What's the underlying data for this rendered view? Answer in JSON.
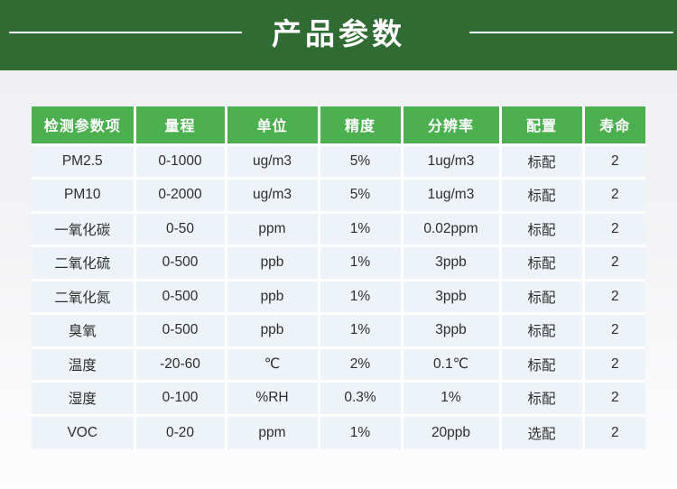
{
  "banner": {
    "title": "产品参数",
    "bg_color": "#306b33",
    "line_color": "#fcfdfb"
  },
  "table": {
    "accent_color": "#4cb050",
    "cell_bg_color": "#eef3f9",
    "headers": [
      "检测参数项",
      "量程",
      "单位",
      "精度",
      "分辨率",
      "配置",
      "寿命"
    ],
    "rows": [
      [
        "PM2.5",
        "0-1000",
        "ug/m3",
        "5%",
        "1ug/m3",
        "标配",
        "2"
      ],
      [
        "PM10",
        "0-2000",
        "ug/m3",
        "5%",
        "1ug/m3",
        "标配",
        "2"
      ],
      [
        "一氧化碳",
        "0-50",
        "ppm",
        "1%",
        "0.02ppm",
        "标配",
        "2"
      ],
      [
        "二氧化硫",
        "0-500",
        "ppb",
        "1%",
        "3ppb",
        "标配",
        "2"
      ],
      [
        "二氧化氮",
        "0-500",
        "ppb",
        "1%",
        "3ppb",
        "标配",
        "2"
      ],
      [
        "臭氧",
        "0-500",
        "ppb",
        "1%",
        "3ppb",
        "标配",
        "2"
      ],
      [
        "温度",
        "-20-60",
        "℃",
        "2%",
        "0.1℃",
        "标配",
        "2"
      ],
      [
        "湿度",
        "0-100",
        "%RH",
        "0.3%",
        "1%",
        "标配",
        "2"
      ],
      [
        "VOC",
        "0-20",
        "ppm",
        "1%",
        "20ppb",
        "选配",
        "2"
      ]
    ]
  }
}
